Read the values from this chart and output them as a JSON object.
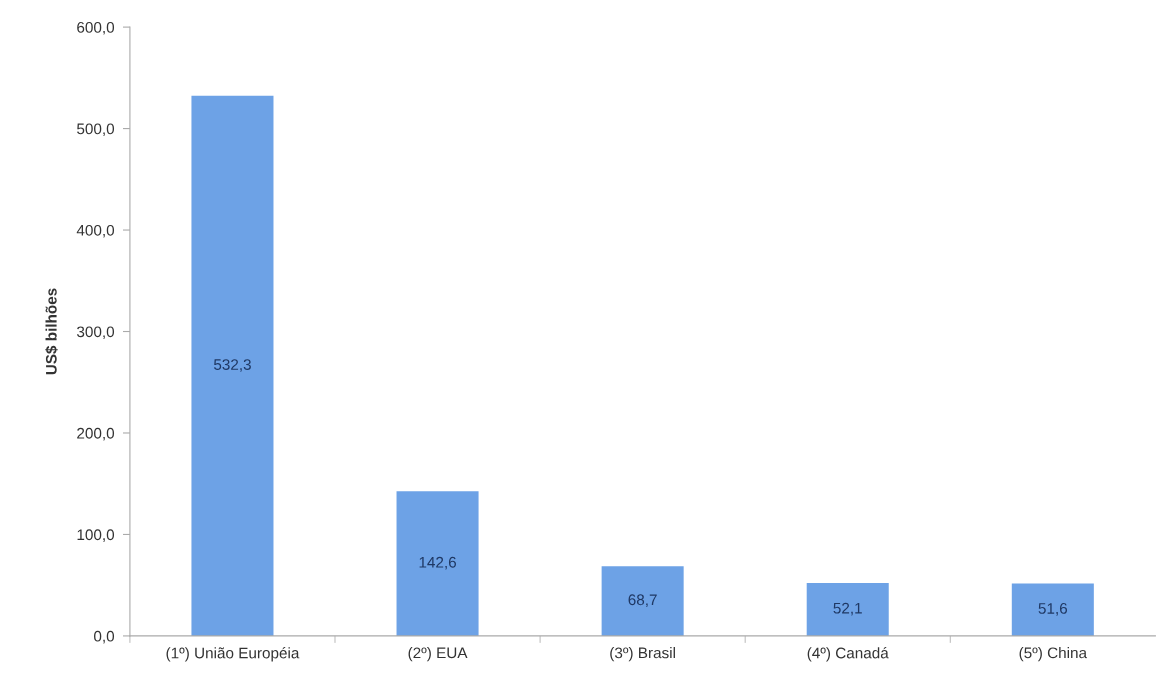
{
  "chart_data": {
    "type": "bar",
    "ylabel": "US$ bilhões",
    "categories": [
      "(1º) União Européia",
      "(2º) EUA",
      "(3º) Brasil",
      "(4º) Canadá",
      "(5º) China"
    ],
    "values": [
      532.3,
      142.6,
      68.7,
      52.1,
      51.6
    ],
    "value_labels": [
      "532,3",
      "142,6",
      "68,7",
      "52,1",
      "51,6"
    ],
    "color": "#6da2e6",
    "ylim": [
      0,
      600
    ],
    "yticks": [
      {
        "value": 0,
        "label": "0,0"
      },
      {
        "value": 100,
        "label": "100,0"
      },
      {
        "value": 200,
        "label": "200,0"
      },
      {
        "value": 300,
        "label": "300,0"
      },
      {
        "value": 400,
        "label": "400,0"
      },
      {
        "value": 500,
        "label": "500,0"
      },
      {
        "value": 600,
        "label": "600,0"
      }
    ]
  }
}
